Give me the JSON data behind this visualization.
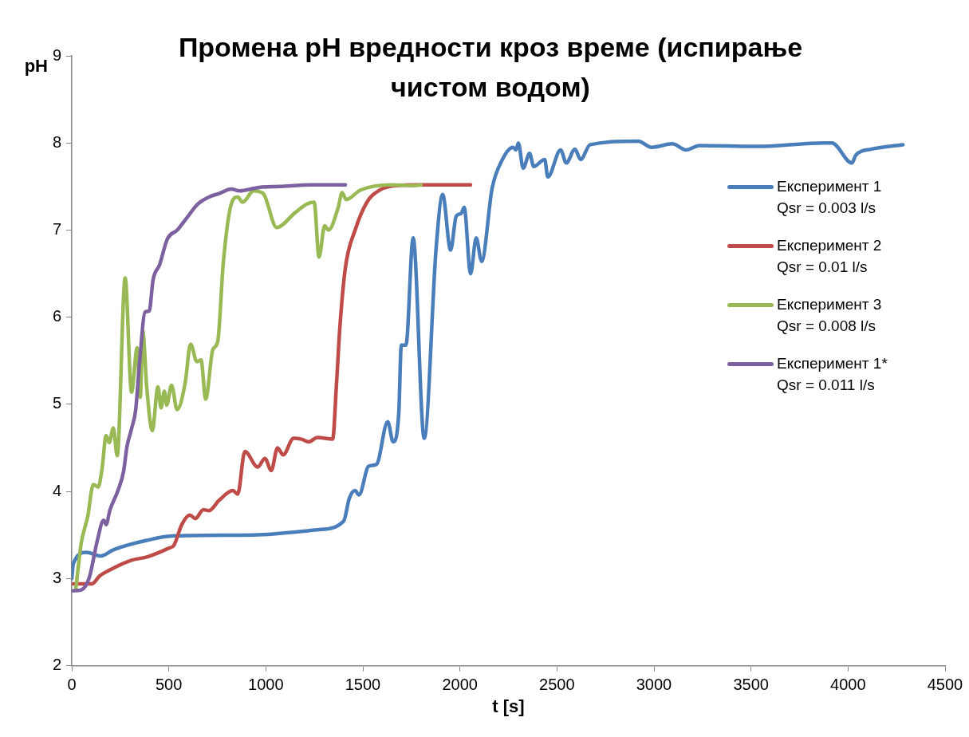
{
  "chart_data": {
    "type": "line",
    "title": "Промена pH вредности кроз време (испирање чистом водом)",
    "xlabel": "t [s]",
    "ylabel": "pH",
    "xlim": [
      0,
      4500
    ],
    "xticks": [
      0,
      500,
      1000,
      1500,
      2000,
      2500,
      3000,
      3500,
      4000,
      4500
    ],
    "ylim": [
      2,
      9
    ],
    "yticks": [
      2,
      3,
      4,
      5,
      6,
      7,
      8,
      9
    ],
    "grid": false,
    "legend": "right",
    "marker": "none",
    "line_style": "solid",
    "series": [
      {
        "name": "Експеримент 1\nQsr = 0.003 l/s",
        "color": "#4a7ebb",
        "x": [
          0,
          8,
          74,
          150,
          214,
          390,
          526,
          937,
          1266,
          1401,
          1430,
          1460,
          1480,
          1530,
          1570,
          1628,
          1656,
          1685,
          1698,
          1722,
          1759,
          1816,
          1878,
          1911,
          1952,
          1981,
          2006,
          2022,
          2055,
          2084,
          2112,
          2166,
          2219,
          2273,
          2289,
          2301,
          2326,
          2359,
          2380,
          2437,
          2453,
          2519,
          2548,
          2593,
          2622,
          2671,
          2918,
          2988,
          3095,
          3165,
          3234,
          3522,
          3876,
          3917,
          4020,
          4040,
          4122,
          4283
        ],
        "values": [
          3.0,
          3.17,
          3.3,
          3.26,
          3.33,
          3.44,
          3.49,
          3.5,
          3.56,
          3.66,
          3.92,
          4.01,
          3.96,
          4.29,
          4.31,
          4.8,
          4.57,
          4.9,
          5.68,
          5.68,
          6.91,
          4.61,
          6.81,
          7.41,
          6.77,
          7.16,
          7.19,
          7.26,
          6.5,
          6.91,
          6.64,
          7.48,
          7.81,
          7.95,
          7.92,
          8.0,
          7.71,
          7.88,
          7.73,
          7.81,
          7.61,
          7.92,
          7.77,
          7.93,
          7.81,
          7.98,
          8.02,
          7.95,
          7.99,
          7.92,
          7.97,
          7.96,
          8.0,
          8.0,
          7.77,
          7.86,
          7.93,
          7.98
        ]
      },
      {
        "name": "Експеримент 2\nQsr = 0.01 l/s",
        "color": "#be4b48",
        "x": [
          8,
          103,
          144,
          197,
          308,
          390,
          501,
          526,
          567,
          608,
          637,
          678,
          707,
          760,
          830,
          855,
          892,
          958,
          995,
          1028,
          1060,
          1089,
          1143,
          1184,
          1221,
          1266,
          1344,
          1365,
          1381,
          1410,
          1460,
          1521,
          1587,
          1673,
          1800,
          2055
        ],
        "values": [
          2.94,
          2.94,
          3.03,
          3.1,
          3.21,
          3.25,
          3.35,
          3.38,
          3.62,
          3.73,
          3.69,
          3.79,
          3.78,
          3.9,
          4.01,
          3.97,
          4.46,
          4.28,
          4.38,
          4.24,
          4.5,
          4.42,
          4.61,
          4.6,
          4.57,
          4.62,
          4.6,
          5.27,
          5.87,
          6.57,
          7.0,
          7.32,
          7.46,
          7.51,
          7.52,
          7.52
        ]
      },
      {
        "name": "Експеримент 3\nQsr = 0.008 l/s",
        "color": "#98b954",
        "x": [
          21,
          49,
          82,
          111,
          136,
          156,
          177,
          193,
          214,
          234,
          275,
          308,
          337,
          353,
          366,
          386,
          415,
          444,
          460,
          477,
          489,
          514,
          543,
          584,
          612,
          645,
          666,
          690,
          727,
          752,
          781,
          822,
          855,
          880,
          937,
          986,
          1056,
          1151,
          1212,
          1249,
          1274,
          1303,
          1323,
          1373,
          1393,
          1414,
          1488,
          1644,
          1763,
          1800
        ],
        "values": [
          2.89,
          3.41,
          3.71,
          4.08,
          4.05,
          4.26,
          4.64,
          4.56,
          4.73,
          4.41,
          6.45,
          5.14,
          5.65,
          5.08,
          5.84,
          5.2,
          4.7,
          5.2,
          4.96,
          5.15,
          4.99,
          5.22,
          4.94,
          5.24,
          5.69,
          5.49,
          5.51,
          5.06,
          5.63,
          5.72,
          6.63,
          7.3,
          7.38,
          7.32,
          7.45,
          7.42,
          7.03,
          7.2,
          7.3,
          7.32,
          6.69,
          7.05,
          7.0,
          7.26,
          7.43,
          7.35,
          7.46,
          7.52,
          7.51,
          7.52
        ]
      },
      {
        "name": "Експеримент 1*\nQsr = 0.011 l/s",
        "color": "#7d60a0",
        "x": [
          8,
          49,
          90,
          132,
          164,
          177,
          197,
          238,
          267,
          284,
          308,
          329,
          349,
          378,
          399,
          419,
          452,
          493,
          543,
          596,
          650,
          707,
          760,
          822,
          863,
          966,
          1069,
          1233,
          1410
        ],
        "values": [
          2.86,
          2.87,
          3.01,
          3.44,
          3.67,
          3.62,
          3.79,
          4.01,
          4.23,
          4.51,
          4.72,
          4.93,
          5.47,
          6.06,
          6.07,
          6.43,
          6.6,
          6.9,
          7.0,
          7.15,
          7.3,
          7.38,
          7.42,
          7.47,
          7.45,
          7.49,
          7.5,
          7.52,
          7.52
        ]
      }
    ]
  }
}
